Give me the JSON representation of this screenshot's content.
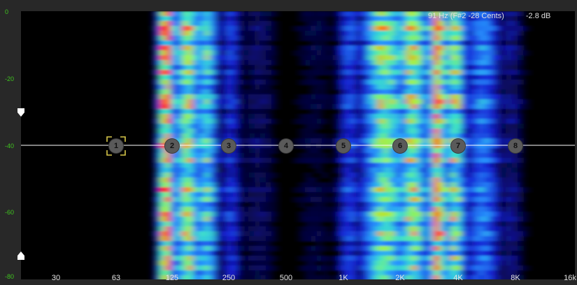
{
  "readout": {
    "pitch": "91 Hz (F#2 -28 Cents)",
    "gain": "-2.8 dB"
  },
  "db_axis": [
    {
      "value": 0,
      "label": "0"
    },
    {
      "value": -20,
      "label": "-20"
    },
    {
      "value": -40,
      "label": "-40"
    },
    {
      "value": -60,
      "label": "-60"
    },
    {
      "value": -80,
      "label": "-80"
    }
  ],
  "freq_axis": [
    "30",
    "63",
    "125",
    "250",
    "500",
    "1K",
    "2K",
    "4K",
    "8K",
    "16k"
  ],
  "eq_bands": [
    {
      "label": "1",
      "freq_index": 1,
      "gain_db": -40,
      "selected": true
    },
    {
      "label": "2",
      "freq_index": 2,
      "gain_db": -40,
      "selected": false
    },
    {
      "label": "3",
      "freq_index": 3,
      "gain_db": -40,
      "selected": false
    },
    {
      "label": "4",
      "freq_index": 4,
      "gain_db": -40,
      "selected": false
    },
    {
      "label": "5",
      "freq_index": 5,
      "gain_db": -40,
      "selected": false
    },
    {
      "label": "6",
      "freq_index": 6,
      "gain_db": -40,
      "selected": false
    },
    {
      "label": "7",
      "freq_index": 7,
      "gain_db": -40,
      "selected": false
    },
    {
      "label": "8",
      "freq_index": 8,
      "gain_db": -40,
      "selected": false
    }
  ],
  "range_handles": {
    "top_db": -30,
    "bottom_db": -73
  },
  "colors": {
    "axis_text": "#3fc41f",
    "curve": "#e8e8e8",
    "node": "#5a5a5a",
    "selection": "#d8c84a"
  }
}
